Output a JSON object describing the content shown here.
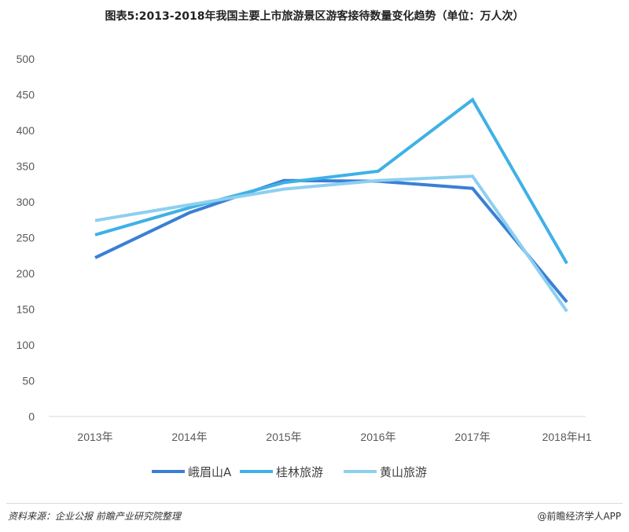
{
  "chart_data": {
    "type": "line",
    "title": "图表5:2013-2018年我国主要上市旅游景区游客接待数量变化趋势（单位：万人次）",
    "categories": [
      "2013年",
      "2014年",
      "2015年",
      "2016年",
      "2017年",
      "2018年H1"
    ],
    "ylim": [
      0,
      500
    ],
    "yticks": [
      0,
      50,
      100,
      150,
      200,
      250,
      300,
      350,
      400,
      450,
      500
    ],
    "grid": false,
    "legend_position": "bottom",
    "series": [
      {
        "name": "峨眉山A",
        "color": "#3a7fd5",
        "values": [
          222,
          285,
          330,
          329,
          319,
          160
        ]
      },
      {
        "name": "桂林旅游",
        "color": "#3fb1e6",
        "values": [
          254,
          292,
          327,
          343,
          443,
          214
        ]
      },
      {
        "name": "黄山旅游",
        "color": "#8dcff0",
        "values": [
          274,
          296,
          318,
          330,
          336,
          147
        ]
      }
    ]
  },
  "footer": {
    "source": "资料来源：企业公报  前瞻产业研究院整理",
    "brand": "@前瞻经济学人APP"
  }
}
